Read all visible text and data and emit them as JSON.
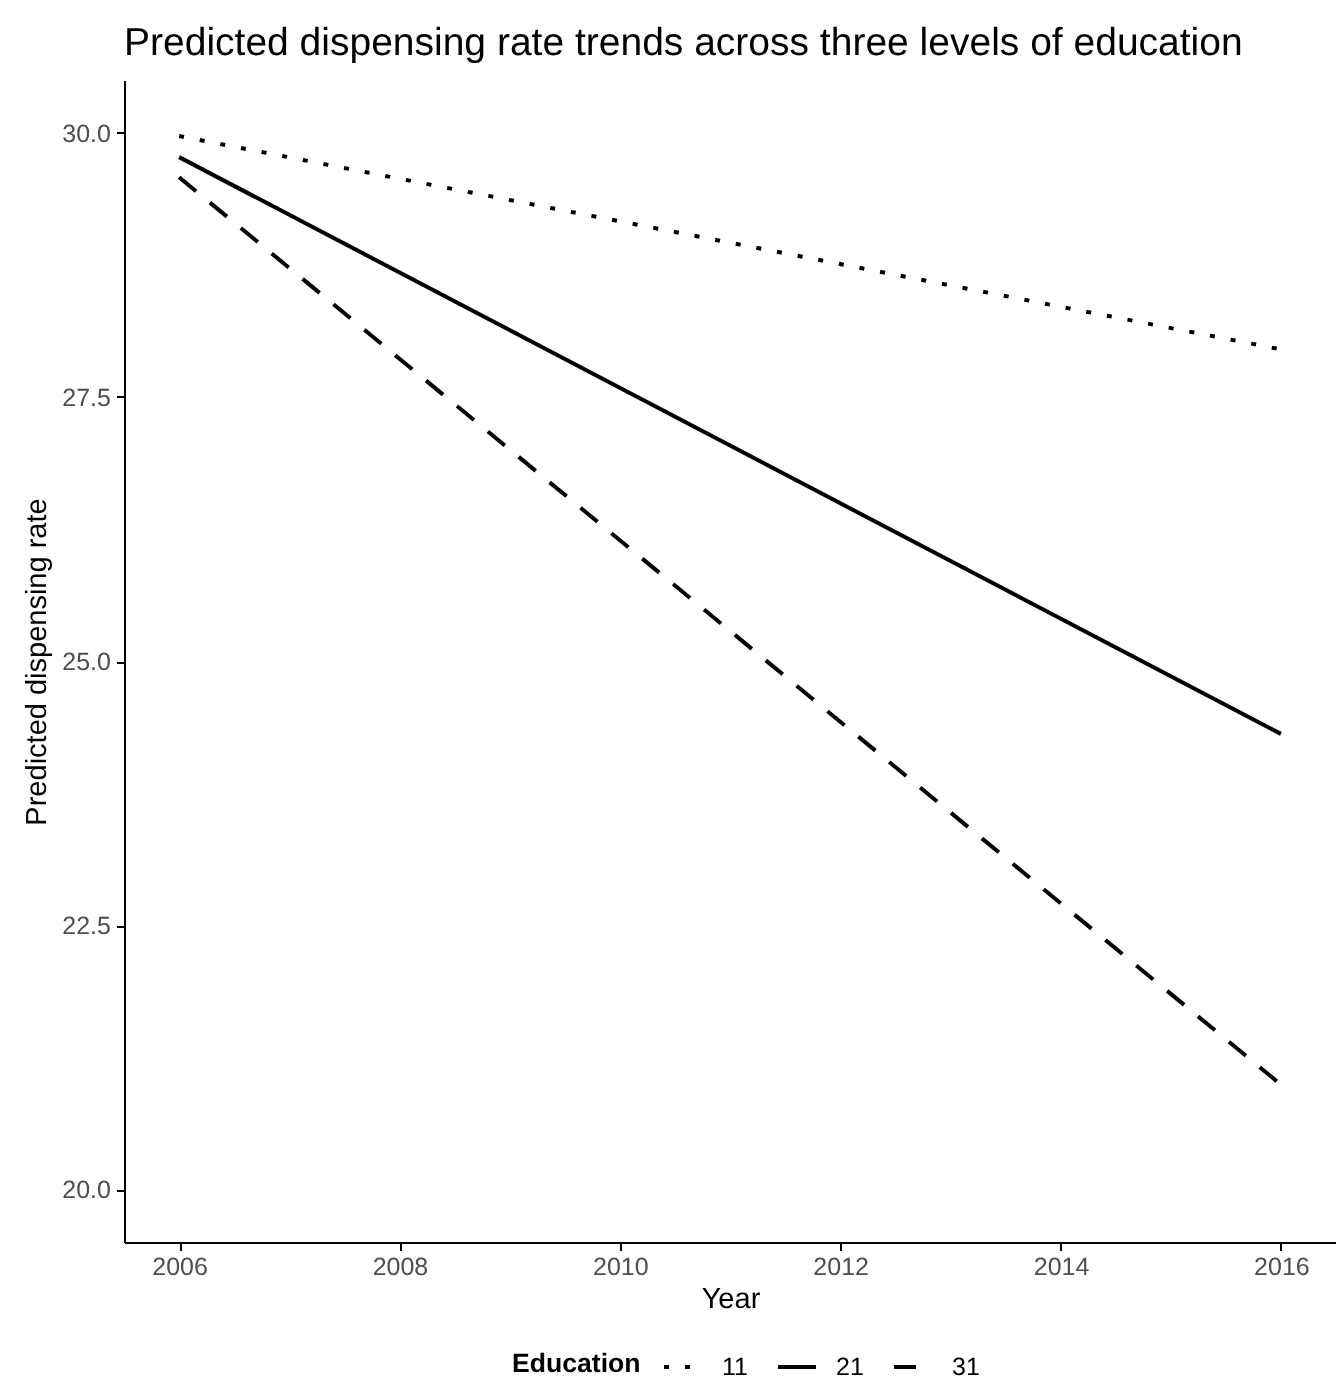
{
  "chart_data": {
    "type": "line",
    "title": "Predicted dispensing rate trends across three levels of education",
    "xlabel": "Year",
    "ylabel": "Predicted dispensing rate",
    "legend_title": "Education",
    "x": [
      2006,
      2016
    ],
    "series": [
      {
        "name": "11",
        "color": "#000000",
        "line_style": "dotted",
        "values": [
          29.97,
          27.95
        ]
      },
      {
        "name": "21",
        "color": "#000000",
        "line_style": "solid",
        "values": [
          29.77,
          24.31
        ]
      },
      {
        "name": "31",
        "color": "#000000",
        "line_style": "dashed",
        "values": [
          29.58,
          20.99
        ]
      }
    ],
    "xlim": [
      2005.5,
      2016.5
    ],
    "ylim": [
      19.5,
      30.5
    ],
    "xticks": [
      2006,
      2008,
      2010,
      2012,
      2014,
      2016
    ],
    "yticks": [
      {
        "value": 20,
        "label": "20.0"
      },
      22.5,
      {
        "value": 25,
        "label": "25.0"
      },
      27.5,
      {
        "value": 30,
        "label": "30.0"
      }
    ],
    "legend": "bottom"
  }
}
